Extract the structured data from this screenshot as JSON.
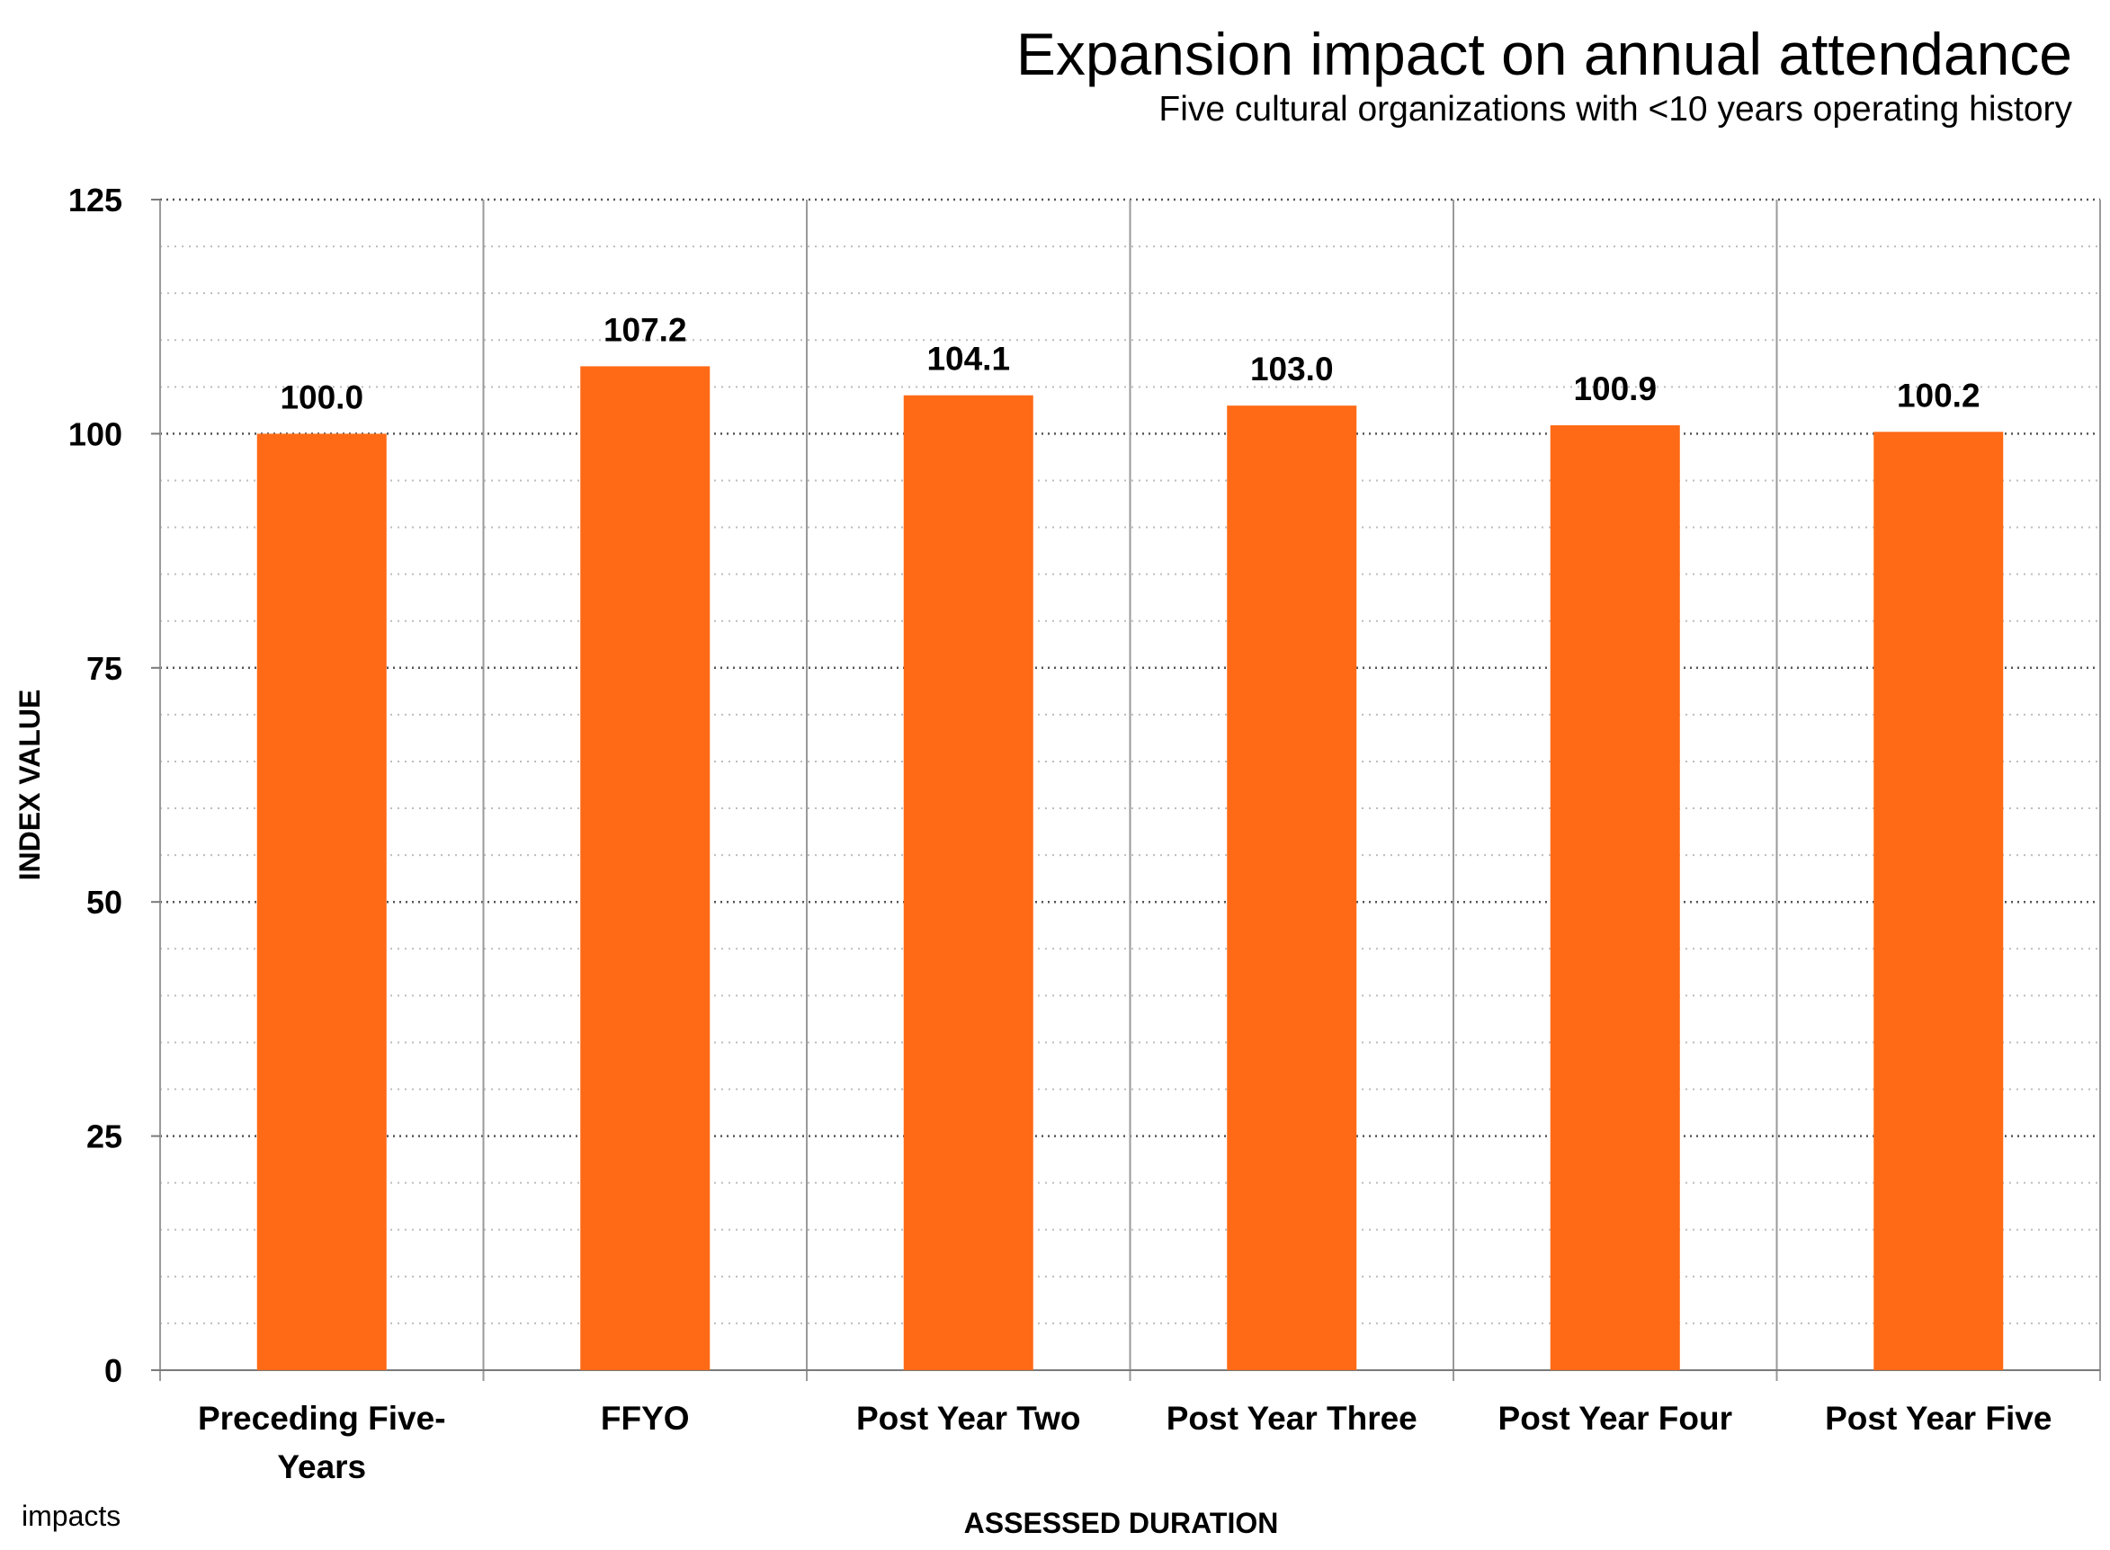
{
  "chart_data": {
    "type": "bar",
    "title": "Expansion impact on annual attendance",
    "subtitle": "Five cultural organizations with <10 years operating history",
    "xlabel": "ASSESSED DURATION",
    "ylabel": "INDEX VALUE",
    "ylim": [
      0,
      125
    ],
    "yticks": [
      0,
      25,
      50,
      75,
      100,
      125
    ],
    "minor_grid_step": 5,
    "grid": true,
    "categories": [
      [
        "Preceding Five-",
        "Years"
      ],
      [
        "FFYO"
      ],
      [
        "Post Year Two"
      ],
      [
        "Post Year Three"
      ],
      [
        "Post Year Four"
      ],
      [
        "Post Year Five"
      ]
    ],
    "values": [
      100.0,
      107.2,
      104.1,
      103.0,
      100.9,
      100.2
    ],
    "data_labels": [
      "100.0",
      "107.2",
      "104.1",
      "103.0",
      "100.9",
      "100.2"
    ],
    "bar_color": "#FF6A16",
    "grid_color": "#9a9a9a"
  },
  "branding": {
    "logo_text": "impacts"
  }
}
